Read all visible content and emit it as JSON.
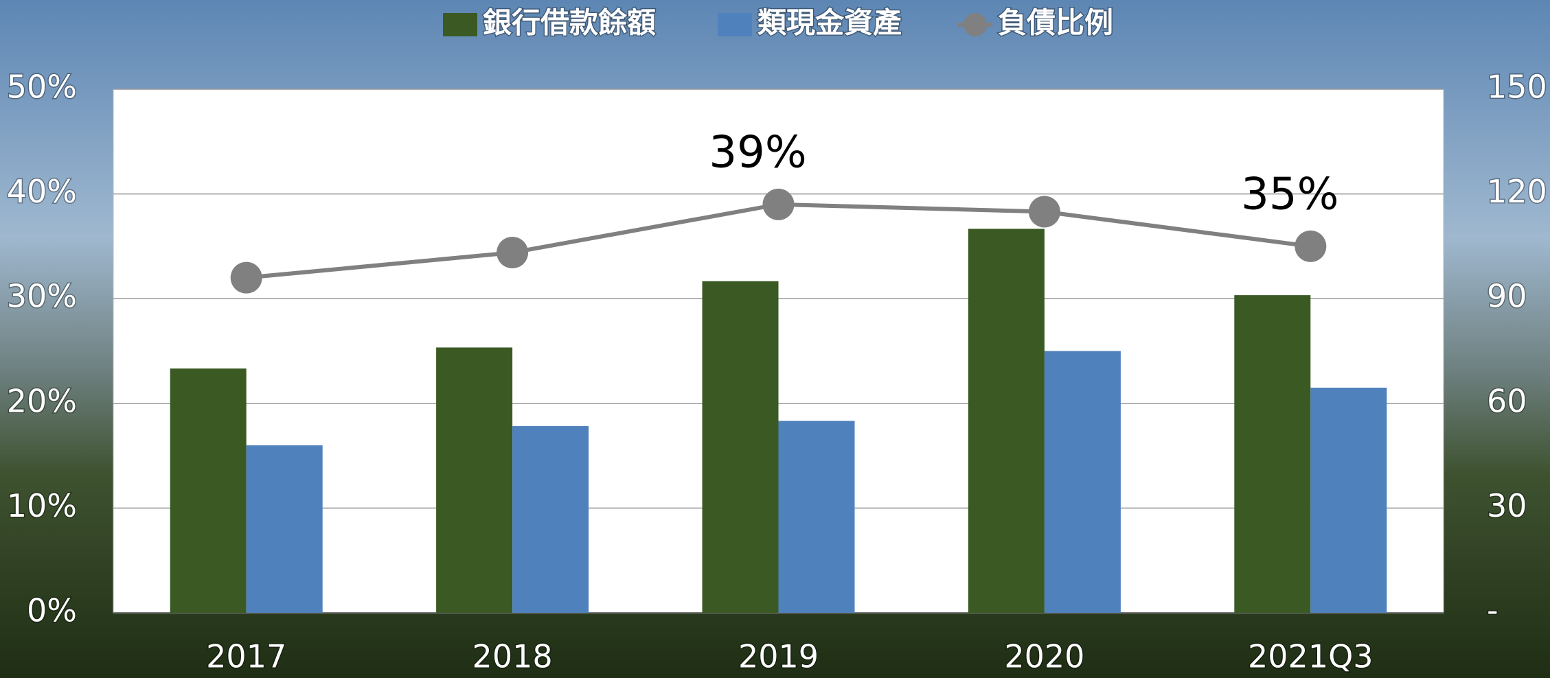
{
  "chart_data": {
    "type": "bar-line",
    "categories": [
      "2017",
      "2018",
      "2019",
      "2020",
      "2021Q3"
    ],
    "series": [
      {
        "name": "銀行借款餘額",
        "color": "#3b5a23",
        "type": "bar",
        "axis": "y2",
        "values": [
          70,
          76,
          95,
          110,
          91
        ]
      },
      {
        "name": "類現金資產",
        "color": "#4f81bd",
        "type": "bar",
        "axis": "y2",
        "values": [
          48,
          53.5,
          55,
          75,
          64.5
        ]
      },
      {
        "name": "負債比例",
        "color": "#808080",
        "type": "line",
        "axis": "y",
        "values": [
          32,
          34.4,
          39,
          38.3,
          35
        ],
        "value_labels": [
          null,
          null,
          "39%",
          null,
          "35%"
        ]
      }
    ],
    "ylim": [
      0,
      50
    ],
    "yticks": [
      {
        "value": 0,
        "label": "0%"
      },
      {
        "value": 10,
        "label": "10%"
      },
      {
        "value": 20,
        "label": "20%"
      },
      {
        "value": 30,
        "label": "30%"
      },
      {
        "value": 40,
        "label": "40%"
      },
      {
        "value": 50,
        "label": "50%"
      }
    ],
    "y2lim": [
      0,
      150
    ],
    "y2ticks": [
      {
        "value": 0,
        "label": "-"
      },
      30,
      60,
      90,
      120,
      150
    ],
    "grid": true
  }
}
